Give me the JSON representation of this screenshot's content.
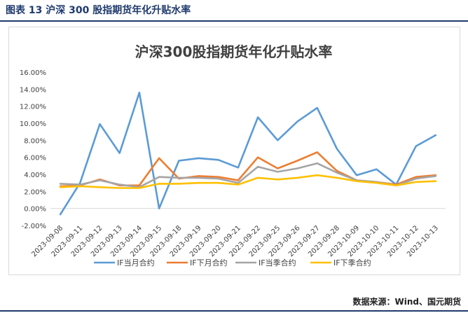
{
  "figure": {
    "caption": "图表 13  沪深 300 股指期货年化升贴水率",
    "source": "数据来源：Wind、国元期货"
  },
  "chart_data": {
    "type": "line",
    "title": "沪深300股指期货年化升贴水率",
    "categories": [
      "2023-09-08",
      "2023-09-11",
      "2023-09-12",
      "2023-09-13",
      "2023-09-14",
      "2023-09-15",
      "2023-09-18",
      "2023-09-19",
      "2023-09-20",
      "2023-09-21",
      "2023-09-22",
      "2023-09-25",
      "2023-09-26",
      "2023-09-27",
      "2023-09-28",
      "2023-10-09",
      "2023-10-10",
      "2023-10-11",
      "2023-10-12",
      "2023-10-13"
    ],
    "y_ticks": [
      "16.00%",
      "14.00%",
      "12.00%",
      "10.00%",
      "8.00%",
      "6.00%",
      "4.00%",
      "2.00%",
      "0.00%",
      "-2.00%"
    ],
    "ylim": [
      -2,
      16
    ],
    "series": [
      {
        "name": "IF当月合约",
        "color": "#5b9bd5",
        "values": [
          -0.7,
          3.0,
          9.9,
          6.5,
          13.6,
          0.0,
          5.6,
          5.9,
          5.7,
          4.8,
          10.7,
          8.0,
          10.2,
          11.8,
          7.0,
          3.9,
          4.6,
          2.8,
          7.3,
          8.6
        ]
      },
      {
        "name": "IF下月合约",
        "color": "#ed7d31",
        "values": [
          2.6,
          2.7,
          3.4,
          2.7,
          2.7,
          5.9,
          3.5,
          3.8,
          3.7,
          3.3,
          6.0,
          4.7,
          5.6,
          6.6,
          4.4,
          3.3,
          3.1,
          2.8,
          3.7,
          3.9
        ]
      },
      {
        "name": "IF当季合约",
        "color": "#a5a5a5",
        "values": [
          2.9,
          2.8,
          3.3,
          2.8,
          2.5,
          3.7,
          3.6,
          3.6,
          3.5,
          3.0,
          4.9,
          4.3,
          4.7,
          5.3,
          4.2,
          3.3,
          3.1,
          2.7,
          3.5,
          3.8
        ]
      },
      {
        "name": "IF下季合约",
        "color": "#ffc000",
        "values": [
          2.5,
          2.6,
          2.5,
          2.4,
          2.4,
          2.9,
          2.9,
          3.0,
          3.0,
          2.8,
          3.6,
          3.4,
          3.6,
          3.9,
          3.6,
          3.2,
          3.0,
          2.7,
          3.1,
          3.2
        ]
      }
    ]
  }
}
